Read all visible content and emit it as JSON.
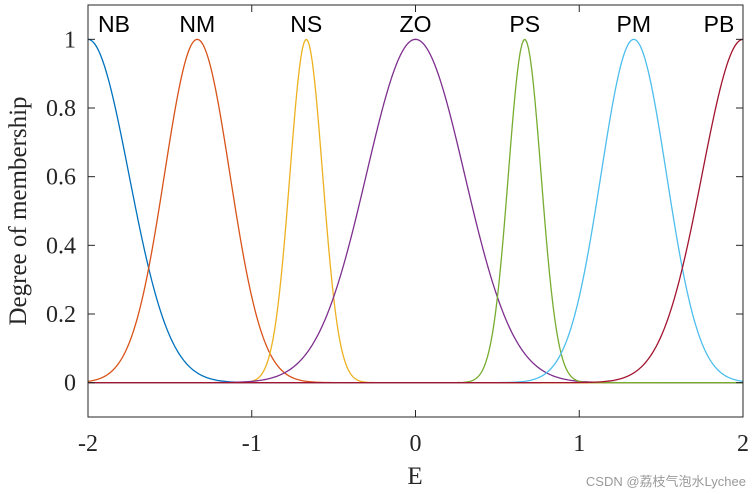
{
  "chart_data": {
    "type": "line",
    "xlabel": "E",
    "ylabel": "Degree of membership",
    "xlim": [
      -2,
      2
    ],
    "ylim": [
      -0.1,
      1.1
    ],
    "xticks": [
      -2,
      -1,
      0,
      1,
      2
    ],
    "xtick_labels": [
      "-2",
      "-1",
      "0",
      "1",
      "2"
    ],
    "yticks": [
      0,
      0.2,
      0.4,
      0.6,
      0.8,
      1
    ],
    "ytick_labels": [
      "0",
      "0.2",
      "0.4",
      "0.6",
      "0.8",
      "1"
    ],
    "grid": false,
    "series": [
      {
        "name": "NB",
        "function": "gaussian",
        "center": -2.0,
        "sigma": 0.25,
        "color": "#0072BD"
      },
      {
        "name": "NM",
        "function": "gaussian",
        "center": -1.333,
        "sigma": 0.2,
        "color": "#D95319"
      },
      {
        "name": "NS",
        "function": "gaussian",
        "center": -0.667,
        "sigma": 0.1,
        "color": "#EDB120"
      },
      {
        "name": "ZO",
        "function": "gaussian",
        "center": 0.0,
        "sigma": 0.3,
        "color": "#7E2F8E"
      },
      {
        "name": "PS",
        "function": "gaussian",
        "center": 0.667,
        "sigma": 0.1,
        "color": "#77AC30"
      },
      {
        "name": "PM",
        "function": "gaussian",
        "center": 1.333,
        "sigma": 0.2,
        "color": "#4DBEEE"
      },
      {
        "name": "PB",
        "function": "gaussian",
        "center": 2.0,
        "sigma": 0.25,
        "color": "#A2142F"
      }
    ]
  },
  "watermark": "CSDN @荔枝气泡水Lychee"
}
